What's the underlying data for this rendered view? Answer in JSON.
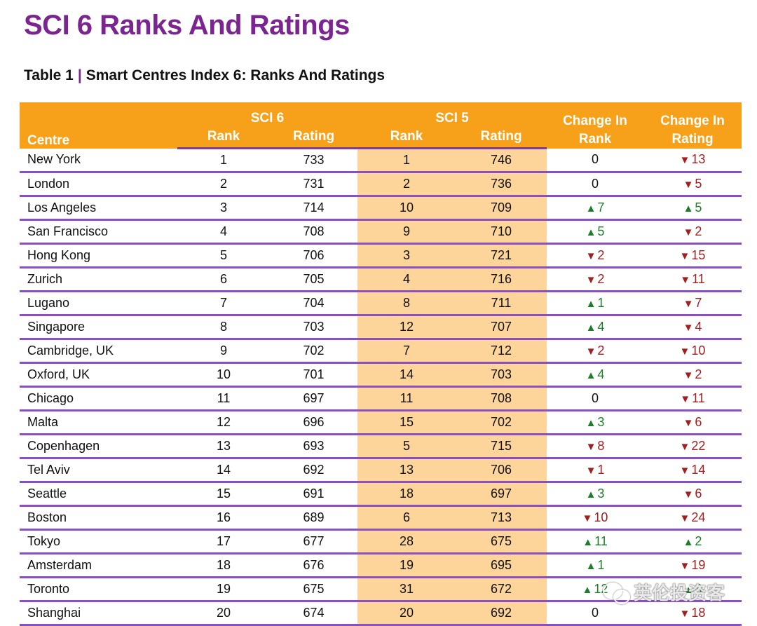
{
  "title": "SCI 6 Ranks And Ratings",
  "subtitle": {
    "table_no": "Table 1",
    "sep": "|",
    "text": "Smart Centres Index 6: Ranks And Ratings"
  },
  "header": {
    "centre": "Centre",
    "sci6": "SCI 6",
    "sci5": "SCI 5",
    "rank": "Rank",
    "rating": "Rating",
    "change_rank": "Change In Rank",
    "change_rating": "Change In Rating"
  },
  "rows": [
    {
      "centre": "New York",
      "sci6_rank": "1",
      "sci6_rating": "733",
      "sci5_rank": "1",
      "sci5_rating": "746",
      "cr_dir": "zero",
      "cr_val": "0",
      "crt_dir": "down",
      "crt_val": "13"
    },
    {
      "centre": "London",
      "sci6_rank": "2",
      "sci6_rating": "731",
      "sci5_rank": "2",
      "sci5_rating": "736",
      "cr_dir": "zero",
      "cr_val": "0",
      "crt_dir": "down",
      "crt_val": "5"
    },
    {
      "centre": "Los Angeles",
      "sci6_rank": "3",
      "sci6_rating": "714",
      "sci5_rank": "10",
      "sci5_rating": "709",
      "cr_dir": "up",
      "cr_val": "7",
      "crt_dir": "up",
      "crt_val": "5"
    },
    {
      "centre": "San Francisco",
      "sci6_rank": "4",
      "sci6_rating": "708",
      "sci5_rank": "9",
      "sci5_rating": "710",
      "cr_dir": "up",
      "cr_val": "5",
      "crt_dir": "down",
      "crt_val": "2"
    },
    {
      "centre": "Hong Kong",
      "sci6_rank": "5",
      "sci6_rating": "706",
      "sci5_rank": "3",
      "sci5_rating": "721",
      "cr_dir": "down",
      "cr_val": "2",
      "crt_dir": "down",
      "crt_val": "15"
    },
    {
      "centre": "Zurich",
      "sci6_rank": "6",
      "sci6_rating": "705",
      "sci5_rank": "4",
      "sci5_rating": "716",
      "cr_dir": "down",
      "cr_val": "2",
      "crt_dir": "down",
      "crt_val": "11"
    },
    {
      "centre": "Lugano",
      "sci6_rank": "7",
      "sci6_rating": "704",
      "sci5_rank": "8",
      "sci5_rating": "711",
      "cr_dir": "up",
      "cr_val": "1",
      "crt_dir": "down",
      "crt_val": "7"
    },
    {
      "centre": "Singapore",
      "sci6_rank": "8",
      "sci6_rating": "703",
      "sci5_rank": "12",
      "sci5_rating": "707",
      "cr_dir": "up",
      "cr_val": "4",
      "crt_dir": "down",
      "crt_val": "4"
    },
    {
      "centre": "Cambridge, UK",
      "sci6_rank": "9",
      "sci6_rating": "702",
      "sci5_rank": "7",
      "sci5_rating": "712",
      "cr_dir": "down",
      "cr_val": "2",
      "crt_dir": "down",
      "crt_val": "10"
    },
    {
      "centre": "Oxford, UK",
      "sci6_rank": "10",
      "sci6_rating": "701",
      "sci5_rank": "14",
      "sci5_rating": "703",
      "cr_dir": "up",
      "cr_val": "4",
      "crt_dir": "down",
      "crt_val": "2"
    },
    {
      "centre": "Chicago",
      "sci6_rank": "11",
      "sci6_rating": "697",
      "sci5_rank": "11",
      "sci5_rating": "708",
      "cr_dir": "zero",
      "cr_val": "0",
      "crt_dir": "down",
      "crt_val": "11"
    },
    {
      "centre": "Malta",
      "sci6_rank": "12",
      "sci6_rating": "696",
      "sci5_rank": "15",
      "sci5_rating": "702",
      "cr_dir": "up",
      "cr_val": "3",
      "crt_dir": "down",
      "crt_val": "6"
    },
    {
      "centre": "Copenhagen",
      "sci6_rank": "13",
      "sci6_rating": "693",
      "sci5_rank": "5",
      "sci5_rating": "715",
      "cr_dir": "down",
      "cr_val": "8",
      "crt_dir": "down",
      "crt_val": "22"
    },
    {
      "centre": "Tel Aviv",
      "sci6_rank": "14",
      "sci6_rating": "692",
      "sci5_rank": "13",
      "sci5_rating": "706",
      "cr_dir": "down",
      "cr_val": "1",
      "crt_dir": "down",
      "crt_val": "14"
    },
    {
      "centre": "Seattle",
      "sci6_rank": "15",
      "sci6_rating": "691",
      "sci5_rank": "18",
      "sci5_rating": "697",
      "cr_dir": "up",
      "cr_val": "3",
      "crt_dir": "down",
      "crt_val": "6"
    },
    {
      "centre": "Boston",
      "sci6_rank": "16",
      "sci6_rating": "689",
      "sci5_rank": "6",
      "sci5_rating": "713",
      "cr_dir": "down",
      "cr_val": "10",
      "crt_dir": "down",
      "crt_val": "24"
    },
    {
      "centre": "Tokyo",
      "sci6_rank": "17",
      "sci6_rating": "677",
      "sci5_rank": "28",
      "sci5_rating": "675",
      "cr_dir": "up",
      "cr_val": "11",
      "crt_dir": "up",
      "crt_val": "2"
    },
    {
      "centre": "Amsterdam",
      "sci6_rank": "18",
      "sci6_rating": "676",
      "sci5_rank": "19",
      "sci5_rating": "695",
      "cr_dir": "up",
      "cr_val": "1",
      "crt_dir": "down",
      "crt_val": "19"
    },
    {
      "centre": "Toronto",
      "sci6_rank": "19",
      "sci6_rating": "675",
      "sci5_rank": "31",
      "sci5_rating": "672",
      "cr_dir": "up",
      "cr_val": "12",
      "crt_dir": "up",
      "crt_val": "3"
    },
    {
      "centre": "Shanghai",
      "sci6_rank": "20",
      "sci6_rating": "674",
      "sci5_rank": "20",
      "sci5_rating": "692",
      "cr_dir": "zero",
      "cr_val": "0",
      "crt_dir": "down",
      "crt_val": "18"
    }
  ],
  "arrows": {
    "up": "▲",
    "down": "▼",
    "zero": ""
  },
  "watermark": {
    "text": "英伦投资客",
    "icon": "wechat-icon"
  },
  "colors": {
    "accent": "#7b2590",
    "header_bg": "#f7a11a",
    "sci5_bg": "#fdd49a",
    "up": "#1e7d2b",
    "down": "#a31f1f",
    "row_rule": "#8a4fc0"
  }
}
